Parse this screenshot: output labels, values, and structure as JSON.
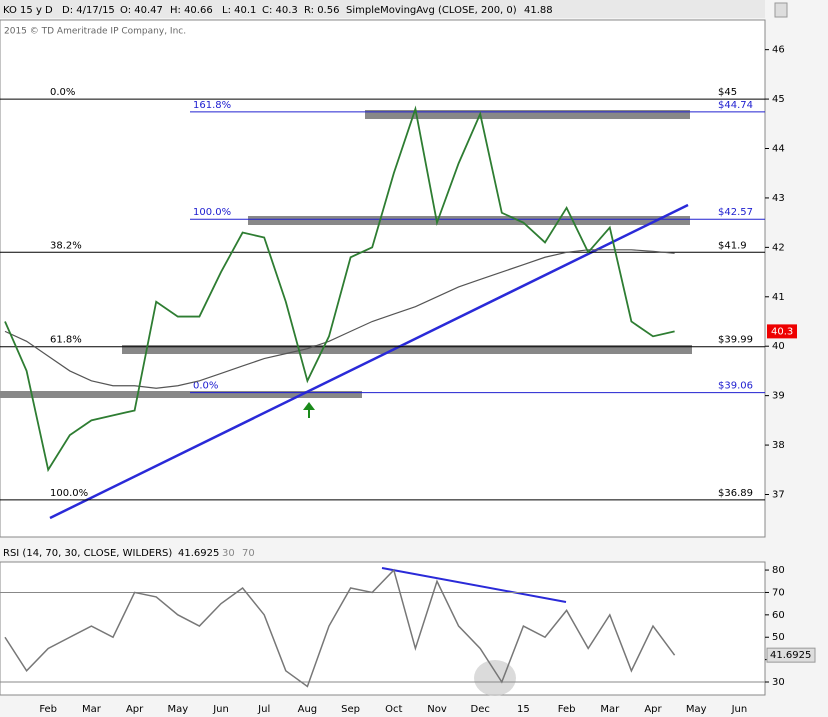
{
  "header": {
    "symbol": "KO 15 y D",
    "date": "D: 4/17/15",
    "open": "O: 40.47",
    "high": "H: 40.66",
    "low": "L: 40.1",
    "close": "C: 40.3",
    "range": "R: 0.56",
    "study": "SimpleMovingAvg (CLOSE, 200, 0)",
    "study_value": "41.88",
    "copyright": "2015 © TD Ameritrade IP Company, Inc."
  },
  "chart_data": [
    {
      "type": "line",
      "categories": [
        null,
        null,
        "Feb",
        null,
        "Mar",
        null,
        "Apr",
        null,
        "May",
        null,
        "Jun",
        null,
        "Jul",
        null,
        "Aug",
        null,
        "Sep",
        null,
        "Oct",
        null,
        "Nov",
        null,
        "Dec",
        null,
        "15",
        null,
        "Feb",
        null,
        "Mar",
        null,
        "Apr",
        null,
        "May",
        null,
        "Jun"
      ],
      "series": [
        {
          "name": "KO",
          "color": "#2e7d32",
          "values": [
            40.5,
            39.5,
            37.5,
            38.2,
            38.5,
            38.6,
            38.7,
            40.9,
            40.6,
            40.6,
            41.5,
            42.3,
            42.2,
            40.9,
            39.3,
            40.2,
            41.8,
            42.0,
            43.5,
            44.8,
            42.5,
            43.7,
            44.7,
            42.7,
            42.5,
            42.1,
            42.8,
            41.9,
            42.4,
            40.5,
            40.2,
            40.3,
            null,
            null,
            null
          ]
        },
        {
          "name": "SimpleMovingAvg",
          "color": "#555555",
          "values": [
            40.3,
            40.1,
            39.8,
            39.5,
            39.3,
            39.2,
            39.2,
            39.15,
            39.2,
            39.3,
            39.45,
            39.6,
            39.75,
            39.85,
            39.95,
            40.1,
            40.3,
            40.5,
            40.65,
            40.8,
            41.0,
            41.2,
            41.35,
            41.5,
            41.65,
            41.8,
            41.9,
            41.95,
            41.95,
            41.95,
            41.92,
            41.88,
            null,
            null,
            null
          ]
        }
      ],
      "ylim": [
        36.14,
        46.6
      ],
      "yticks": [
        37,
        38,
        39,
        40,
        41,
        42,
        43,
        44,
        45,
        46
      ],
      "last_price": "40.3",
      "levels": [
        {
          "value": 45,
          "label": "$45",
          "fib": "0.0%",
          "color": "#000000"
        },
        {
          "value": 44.74,
          "label": "$44.74",
          "fib": "161.8%",
          "color": "#2020d0"
        },
        {
          "value": 42.57,
          "label": "$42.57",
          "fib": "100.0%",
          "color": "#2020d0"
        },
        {
          "value": 41.9,
          "label": "$41.9",
          "fib": "38.2%",
          "color": "#000000"
        },
        {
          "value": 39.99,
          "label": "$39.99",
          "fib": "61.8%",
          "color": "#000000"
        },
        {
          "value": 39.06,
          "label": "$39.06",
          "fib": "0.0%",
          "color": "#2020d0"
        },
        {
          "value": 36.89,
          "label": "$36.89",
          "fib": "100.0%",
          "color": "#000000"
        }
      ]
    },
    {
      "type": "line",
      "title": "RSI (14, 70, 30, CLOSE, WILDERS)",
      "current": "41.6925",
      "levels": [
        30,
        70
      ],
      "series": [
        {
          "name": "RSI",
          "color": "#777777",
          "values": [
            50,
            35,
            45,
            50,
            55,
            50,
            70,
            68,
            60,
            55,
            65,
            72,
            60,
            35,
            28,
            55,
            72,
            70,
            80,
            45,
            75,
            55,
            45,
            30,
            55,
            50,
            62,
            45,
            60,
            35,
            55,
            42,
            null,
            null,
            null
          ]
        }
      ],
      "ylim": [
        24.2,
        83.6
      ],
      "yticks": [
        30,
        40,
        50,
        60,
        70,
        80
      ]
    }
  ]
}
